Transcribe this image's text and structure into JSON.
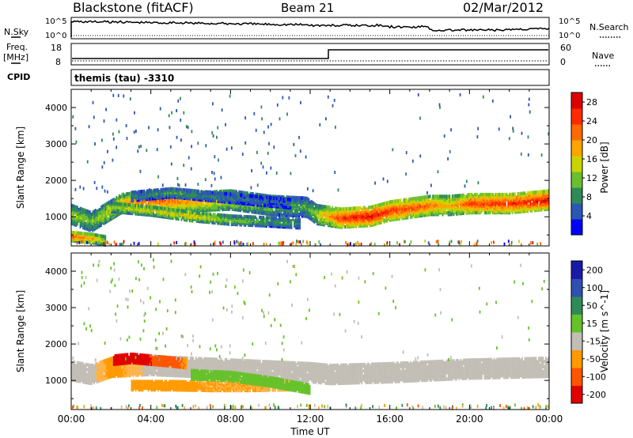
{
  "header": {
    "station": "Blackstone (fitACF)",
    "beam": "Beam 21",
    "date": "02/Mar/2012"
  },
  "top_panel": {
    "left_label": "N.Sky",
    "right_label": "N.Search",
    "left_ticks": [
      "10^5",
      "10^0"
    ],
    "right_ticks": [
      "10^5",
      "10^0"
    ]
  },
  "freq_panel": {
    "left_label_1": "Freq.",
    "left_label_2": "[MHz]",
    "right_label": "Nave",
    "left_ticks": [
      "18",
      "8"
    ],
    "right_ticks": [
      "60",
      "0"
    ]
  },
  "cpid": {
    "label": "CPID",
    "value": "themis (tau) -3310"
  },
  "x_axis": {
    "label": "Time UT",
    "ticks": [
      "00:00",
      "04:00",
      "08:00",
      "12:00",
      "16:00",
      "20:00",
      "00:00"
    ]
  },
  "colors": {
    "power": [
      "#0000ff",
      "#2b57b4",
      "#2e8b57",
      "#6abf2e",
      "#c8d400",
      "#ffa500",
      "#ff6a00",
      "#ff2a00",
      "#dd0000"
    ],
    "velocity_neg": "#ff0000",
    "velocity_zero": "#c0bcb5",
    "velocity_pos": "#2020c0"
  },
  "chart_data": [
    {
      "type": "heatmap",
      "panel": "power",
      "ylabel": "Slant Range [km]",
      "ylim": [
        200,
        4500
      ],
      "yticks": [
        "1000",
        "2000",
        "3000",
        "4000"
      ],
      "xlim_hours": [
        0,
        24
      ],
      "colorbar": {
        "label": "Power [dB]",
        "ticks": [
          "4",
          "8",
          "12",
          "16",
          "20",
          "24",
          "28"
        ],
        "range": [
          0,
          30
        ]
      },
      "bands": [
        {
          "name": "main",
          "points": [
            [
              0,
              1100
            ],
            [
              1,
              900
            ],
            [
              2.5,
              1400
            ],
            [
              4,
              1500
            ],
            [
              6,
              1450
            ],
            [
              8,
              1500
            ],
            [
              10,
              1350
            ],
            [
              11.8,
              1300
            ],
            [
              12.3,
              1100
            ],
            [
              13.5,
              1000
            ],
            [
              15,
              1050
            ],
            [
              16,
              1200
            ],
            [
              18,
              1350
            ],
            [
              19,
              1350
            ],
            [
              20,
              1400
            ],
            [
              22,
              1400
            ],
            [
              24,
              1500
            ]
          ],
          "power": [
            14,
            12,
            18,
            24,
            20,
            16,
            12,
            10,
            14,
            26,
            28,
            26,
            22,
            18,
            24,
            26,
            28
          ]
        },
        {
          "name": "lower",
          "points": [
            [
              0,
              500
            ],
            [
              1,
              450
            ],
            [
              1.7,
              380
            ]
          ],
          "power": [
            24,
            20,
            14
          ]
        },
        {
          "name": "diagonal",
          "points": [
            [
              2,
              1300
            ],
            [
              4,
              1200
            ],
            [
              6,
              1050
            ],
            [
              8,
              950
            ],
            [
              10,
              900
            ],
            [
              11.5,
              850
            ]
          ],
          "power": [
            14,
            16,
            18,
            12,
            10,
            8
          ]
        },
        {
          "name": "upper",
          "points": [
            [
              3,
              1600
            ],
            [
              5,
              1700
            ],
            [
              7,
              1600
            ],
            [
              9,
              1500
            ],
            [
              11,
              1400
            ]
          ],
          "power": [
            8,
            10,
            8,
            6,
            6
          ]
        }
      ]
    },
    {
      "type": "heatmap",
      "panel": "velocity",
      "ylabel": "Slant Range [km]",
      "ylim": [
        200,
        4500
      ],
      "yticks": [
        "1000",
        "2000",
        "3000",
        "4000"
      ],
      "xlim_hours": [
        0,
        24
      ],
      "colorbar": {
        "label": "Velocity [m s^-1]",
        "ticks": [
          "200",
          "100",
          "50",
          "15",
          "-15",
          "-50",
          "-100",
          "-200"
        ],
        "range": [
          -250,
          250
        ]
      },
      "bands": [
        {
          "name": "main",
          "points": [
            [
              0,
              1300
            ],
            [
              1,
              1200
            ],
            [
              2,
              1400
            ],
            [
              4,
              1450
            ],
            [
              6,
              1400
            ],
            [
              8,
              1350
            ],
            [
              10,
              1300
            ],
            [
              12,
              1250
            ],
            [
              13,
              1200
            ],
            [
              16,
              1250
            ],
            [
              20,
              1350
            ],
            [
              24,
              1400
            ]
          ],
          "velocity": [
            0,
            0,
            -60,
            0,
            0,
            0,
            0,
            0,
            0,
            0,
            0,
            -5
          ]
        },
        {
          "name": "red_patch",
          "points": [
            [
              2.1,
              1600
            ],
            [
              3,
              1650
            ],
            [
              4,
              1600
            ],
            [
              5,
              1550
            ],
            [
              5.8,
              1500
            ]
          ],
          "velocity": [
            -200,
            -180,
            -150,
            -100,
            -70
          ]
        },
        {
          "name": "orange_lower",
          "points": [
            [
              3,
              900
            ],
            [
              5,
              900
            ],
            [
              7,
              880
            ],
            [
              9,
              880
            ],
            [
              11,
              900
            ]
          ],
          "velocity": [
            -60,
            -50,
            -40,
            -40,
            -30
          ]
        },
        {
          "name": "green_mid",
          "points": [
            [
              6,
              1200
            ],
            [
              8,
              1150
            ],
            [
              10,
              1000
            ],
            [
              12,
              800
            ]
          ],
          "velocity": [
            30,
            40,
            35,
            30
          ]
        }
      ]
    }
  ]
}
